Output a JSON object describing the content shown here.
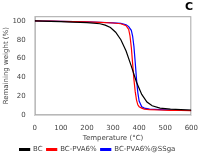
{
  "chart_data": {
    "type": "line",
    "title": "C",
    "xlabel": "Temperature (°C)",
    "ylabel": "Remaining weight (%)",
    "xlim": [
      0,
      600
    ],
    "ylim": [
      0,
      105
    ],
    "xticks": [
      0,
      100,
      200,
      300,
      400,
      500,
      600
    ],
    "yticks": [
      0,
      20,
      40,
      60,
      80,
      100
    ],
    "grid": false,
    "legend": "bottom",
    "series": [
      {
        "name": "BC",
        "color": "black",
        "x": [
          0,
          30,
          60,
          100,
          150,
          200,
          250,
          270,
          290,
          310,
          330,
          350,
          370,
          390,
          410,
          430,
          450,
          480,
          520,
          560,
          600
        ],
        "values": [
          100,
          99.8,
          99.5,
          99.2,
          98.8,
          98.2,
          97,
          95.5,
          93,
          88,
          80,
          68,
          52,
          35,
          22,
          14,
          10,
          7.5,
          6.5,
          6,
          5.5
        ]
      },
      {
        "name": "BC-PVA6%",
        "color": "red",
        "x": [
          0,
          30,
          60,
          100,
          150,
          200,
          250,
          300,
          330,
          350,
          360,
          365,
          370,
          375,
          380,
          385,
          390,
          395,
          400,
          410,
          420,
          440,
          480,
          520,
          560,
          600
        ],
        "values": [
          100,
          99.9,
          99.8,
          99.6,
          99.3,
          99,
          98.5,
          97.8,
          97,
          95,
          91,
          84,
          72,
          55,
          38,
          25,
          16,
          11,
          9,
          7.5,
          6.5,
          6,
          5.5,
          5.2,
          5,
          4.8
        ]
      },
      {
        "name": "BC-PVA6%@SSga",
        "color": "blue",
        "x": [
          0,
          30,
          60,
          100,
          150,
          200,
          250,
          300,
          330,
          350,
          360,
          370,
          375,
          380,
          385,
          390,
          395,
          400,
          410,
          420,
          440,
          480,
          520,
          560,
          600
        ],
        "values": [
          100,
          99.9,
          99.8,
          99.6,
          99.3,
          99,
          98.6,
          98,
          97.3,
          96,
          94,
          90,
          84,
          73,
          56,
          38,
          24,
          15,
          9,
          7.5,
          6.5,
          6,
          5.5,
          5.2,
          5.0
        ]
      }
    ]
  }
}
